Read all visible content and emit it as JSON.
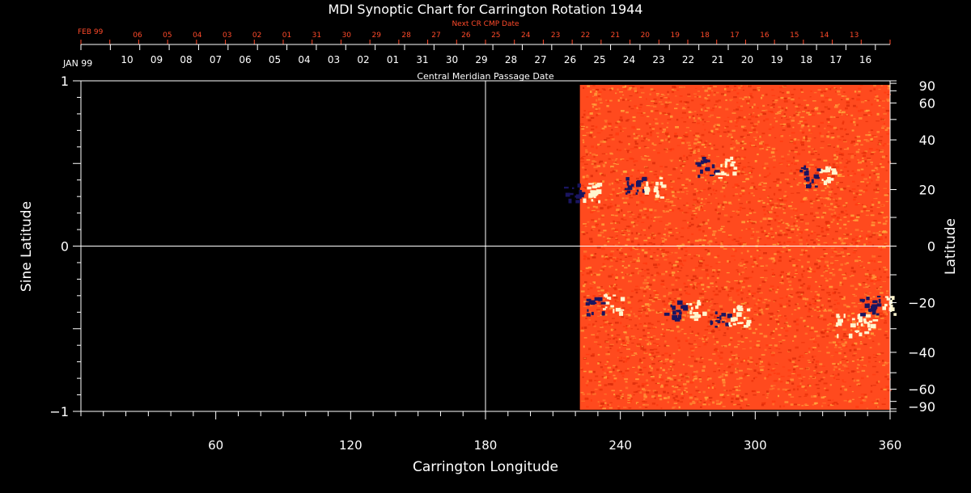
{
  "chart_data": {
    "type": "heatmap",
    "title": "MDI Synoptic Chart for Carrington Rotation 1944",
    "xlabel": "Carrington Longitude",
    "ylabel_left": "Sine Latitude",
    "ylabel_right": "Latitude",
    "xlim": [
      0,
      360
    ],
    "ylim": [
      -1,
      1
    ],
    "x_ticks": [
      60,
      120,
      180,
      240,
      300,
      360
    ],
    "y_ticks_left": [
      -1,
      0,
      1
    ],
    "y_ticks_right_labels": [
      "90",
      "60",
      "40",
      "20",
      "0",
      "−20",
      "−40",
      "−60",
      "−90"
    ],
    "y_ticks_right_values": [
      90,
      60,
      40,
      20,
      0,
      -20,
      -40,
      -60,
      -90
    ],
    "grid_lines": {
      "x": [
        180
      ],
      "y": [
        0
      ]
    },
    "data_longitude_range": [
      222,
      360
    ],
    "colors": {
      "background": "#000000",
      "field": "#ff4a1e",
      "negative": "#1a1560",
      "positive": "#fff6cf",
      "text": "#ffffff",
      "next_cr": "#ff4a2a"
    },
    "top_axes": {
      "cmp_caption": "Central Meridian Passage Date",
      "cmp_start_label": "JAN 99",
      "cmp_dates": [
        "10",
        "09",
        "08",
        "07",
        "06",
        "05",
        "04",
        "03",
        "02",
        "01",
        "31",
        "30",
        "29",
        "28",
        "27",
        "26",
        "25",
        "24",
        "23",
        "22",
        "21",
        "20",
        "19",
        "18",
        "17",
        "16"
      ],
      "next_caption": "Next CR CMP Date",
      "next_start_label": "FEB 99",
      "next_dates": [
        "06",
        "05",
        "04",
        "03",
        "02",
        "01",
        "31",
        "30",
        "29",
        "28",
        "27",
        "26",
        "25",
        "24",
        "23",
        "22",
        "21",
        "20",
        "19",
        "18",
        "17",
        "16",
        "15",
        "14",
        "13"
      ]
    },
    "active_regions": [
      {
        "lon": 222,
        "sinlat": 0.33,
        "polarity": "mixed"
      },
      {
        "lon": 250,
        "sinlat": 0.36,
        "polarity": "mixed"
      },
      {
        "lon": 282,
        "sinlat": 0.48,
        "polarity": "mixed"
      },
      {
        "lon": 328,
        "sinlat": 0.43,
        "polarity": "mixed"
      },
      {
        "lon": 232,
        "sinlat": -0.35,
        "polarity": "mixed"
      },
      {
        "lon": 268,
        "sinlat": -0.38,
        "polarity": "mixed"
      },
      {
        "lon": 288,
        "sinlat": -0.42,
        "polarity": "mixed"
      },
      {
        "lon": 344,
        "sinlat": -0.47,
        "polarity": "positive"
      },
      {
        "lon": 355,
        "sinlat": -0.35,
        "polarity": "mixed"
      }
    ]
  }
}
